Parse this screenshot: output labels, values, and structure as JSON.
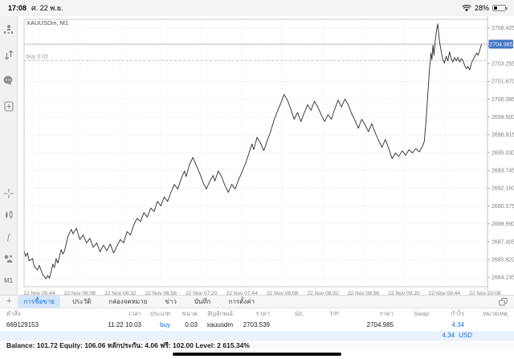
{
  "status_bar": {
    "time": "17:08",
    "date": "ศ. 22 พ.ย.",
    "battery_percent": "28%"
  },
  "sidebar": {
    "timeframe": "M1",
    "indicators_label": "f"
  },
  "tabs": {
    "add": "+",
    "items": [
      {
        "label": "การซื้อขาย",
        "selected": true
      },
      {
        "label": "ประวัติ",
        "selected": false
      },
      {
        "label": "กล่องจดหมาย",
        "selected": false
      },
      {
        "label": "ข่าว",
        "selected": false
      },
      {
        "label": "บันทึก",
        "selected": false
      },
      {
        "label": "การตั้งค่า",
        "selected": false
      }
    ]
  },
  "table": {
    "headers": [
      "คำสั่ง",
      "เวลา",
      "ประเภท",
      "ขนาด",
      "สัญลักษณ์",
      "ราคา",
      "S/L",
      "T/P",
      "ราคา",
      "Swap",
      "กำไร",
      "หมายเหตุ"
    ],
    "row": {
      "order": "669129153",
      "time": "11.22 10:03",
      "type": "buy",
      "size": "0.03",
      "symbol": "xauusdm",
      "price_open": "2703.539",
      "sl": "",
      "tp": "",
      "price_current": "2704.985",
      "swap": "",
      "profit": "4.34",
      "comment": ""
    },
    "summary_profit": "4.34",
    "summary_currency": "USD"
  },
  "balance_line": "Balance: 101.72 Equity: 106.06 หลักประกัน: 4.06 ฟรี: 102.00 Level: 2 615.34%",
  "chart_data": {
    "type": "line",
    "title": "XAUUSDm, M1",
    "symbol_label": "XAUUSDm, M1",
    "grid": true,
    "legend_position": "none",
    "ylim": [
      2683.4,
      2707.2
    ],
    "xlim_minutes": [
      0,
      274.5
    ],
    "y_ticks": [
      "2706.425",
      "2704.840",
      "2703.255",
      "2701.670",
      "2700.085",
      "2698.500",
      "2696.915",
      "2695.330",
      "2693.745",
      "2692.160",
      "2690.575",
      "2688.990",
      "2687.405",
      "2685.820",
      "2684.235"
    ],
    "x_ticks": [
      "22 Nov 05:44",
      "22 Nov 06:08",
      "22 Nov 06:32",
      "22 Nov 06:56",
      "22 Nov 07:20",
      "22 Nov 07:44",
      "22 Nov 08:08",
      "22 Nov 08:32",
      "22 Nov 08:56",
      "22 Nov 09:20",
      "22 Nov 09:44",
      "22 Nov 10:08"
    ],
    "x_tick_minutes": [
      9,
      33,
      57,
      81,
      105,
      129,
      153,
      177,
      201,
      225,
      249,
      273
    ],
    "hlines": [
      {
        "name": "position-buy-line",
        "label": "buy 0.03",
        "value": 2703.539,
        "style": "dashed"
      },
      {
        "name": "bid-price-line",
        "label": "",
        "value": 2704.985,
        "style": "solid",
        "box": "2704.985"
      }
    ],
    "series": [
      {
        "name": "XAUUSDm bid",
        "color": "#2b2b2b",
        "points": [
          [
            0,
            2686.6
          ],
          [
            1,
            2686.1
          ],
          [
            2,
            2686.4
          ],
          [
            3,
            2685.7
          ],
          [
            5,
            2685.9
          ],
          [
            6,
            2685.2
          ],
          [
            8,
            2684.9
          ],
          [
            9,
            2685.3
          ],
          [
            11,
            2684.5
          ],
          [
            13,
            2684.1
          ],
          [
            14,
            2684.4
          ],
          [
            15,
            2684.15
          ],
          [
            16,
            2684.7
          ],
          [
            17,
            2685.4
          ],
          [
            18,
            2685.1
          ],
          [
            19,
            2685.9
          ],
          [
            20,
            2685.5
          ],
          [
            22,
            2686.7
          ],
          [
            23,
            2686.3
          ],
          [
            24,
            2686.6
          ],
          [
            26,
            2687.9
          ],
          [
            28,
            2688.5
          ],
          [
            29,
            2688.1
          ],
          [
            31,
            2688.6
          ],
          [
            33,
            2687.6
          ],
          [
            35,
            2688.0
          ],
          [
            37,
            2687.3
          ],
          [
            39,
            2687.7
          ],
          [
            41,
            2686.9
          ],
          [
            43,
            2687.3
          ],
          [
            45,
            2686.5
          ],
          [
            47,
            2687.1
          ],
          [
            49,
            2686.6
          ],
          [
            51,
            2687.2
          ],
          [
            53,
            2686.4
          ],
          [
            55,
            2687.0
          ],
          [
            57,
            2687.6
          ],
          [
            59,
            2687.3
          ],
          [
            61,
            2688.3
          ],
          [
            63,
            2688.0
          ],
          [
            65,
            2688.9
          ],
          [
            67,
            2689.5
          ],
          [
            69,
            2689.2
          ],
          [
            71,
            2690.0
          ],
          [
            73,
            2689.6
          ],
          [
            75,
            2690.4
          ],
          [
            77,
            2690.1
          ],
          [
            79,
            2691.0
          ],
          [
            81,
            2690.6
          ],
          [
            83,
            2691.4
          ],
          [
            85,
            2691.0
          ],
          [
            87,
            2691.8
          ],
          [
            89,
            2692.5
          ],
          [
            91,
            2692.1
          ],
          [
            93,
            2693.0
          ],
          [
            95,
            2693.7
          ],
          [
            96,
            2693.2
          ],
          [
            98,
            2694.3
          ],
          [
            100,
            2694.9
          ],
          [
            102,
            2694.2
          ],
          [
            104,
            2693.5
          ],
          [
            106,
            2692.7
          ],
          [
            108,
            2692.1
          ],
          [
            110,
            2692.8
          ],
          [
            112,
            2693.3
          ],
          [
            113,
            2692.8
          ],
          [
            115,
            2693.7
          ],
          [
            117,
            2693.2
          ],
          [
            119,
            2692.4
          ],
          [
            121,
            2691.8
          ],
          [
            123,
            2692.5
          ],
          [
            125,
            2692.1
          ],
          [
            127,
            2692.9
          ],
          [
            129,
            2693.6
          ],
          [
            131,
            2694.3
          ],
          [
            133,
            2695.2
          ],
          [
            135,
            2696.1
          ],
          [
            136,
            2695.6
          ],
          [
            138,
            2696.7
          ],
          [
            140,
            2696.2
          ],
          [
            142,
            2695.5
          ],
          [
            144,
            2696.4
          ],
          [
            146,
            2697.2
          ],
          [
            148,
            2698.2
          ],
          [
            150,
            2699.0
          ],
          [
            152,
            2699.7
          ],
          [
            154,
            2700.5
          ],
          [
            156,
            2700.0
          ],
          [
            158,
            2699.2
          ],
          [
            160,
            2698.3
          ],
          [
            162,
            2698.9
          ],
          [
            164,
            2698.1
          ],
          [
            166,
            2698.9
          ],
          [
            168,
            2699.6
          ],
          [
            170,
            2699.1
          ],
          [
            172,
            2699.9
          ],
          [
            174,
            2699.4
          ],
          [
            176,
            2698.7
          ],
          [
            178,
            2698.1
          ],
          [
            180,
            2698.7
          ],
          [
            182,
            2698.3
          ],
          [
            184,
            2699.2
          ],
          [
            186,
            2700.0
          ],
          [
            188,
            2699.4
          ],
          [
            190,
            2700.1
          ],
          [
            192,
            2699.6
          ],
          [
            194,
            2698.8
          ],
          [
            196,
            2698.2
          ],
          [
            198,
            2697.5
          ],
          [
            200,
            2698.3
          ],
          [
            202,
            2697.8
          ],
          [
            204,
            2697.2
          ],
          [
            206,
            2697.9
          ],
          [
            208,
            2697.1
          ],
          [
            210,
            2696.4
          ],
          [
            212,
            2695.8
          ],
          [
            214,
            2696.5
          ],
          [
            216,
            2695.7
          ],
          [
            218,
            2694.8
          ],
          [
            220,
            2695.3
          ],
          [
            222,
            2695.0
          ],
          [
            224,
            2695.5
          ],
          [
            226,
            2695.1
          ],
          [
            228,
            2695.6
          ],
          [
            230,
            2695.3
          ],
          [
            232,
            2695.7
          ],
          [
            234,
            2695.4
          ],
          [
            236,
            2695.9
          ],
          [
            237,
            2696.3
          ],
          [
            238,
            2698.0
          ],
          [
            239,
            2700.2
          ],
          [
            240,
            2702.5
          ],
          [
            241,
            2704.2
          ],
          [
            241.6,
            2703.6
          ],
          [
            242.2,
            2704.9
          ],
          [
            242.8,
            2704.0
          ],
          [
            243.5,
            2705.2
          ],
          [
            244.2,
            2706.1
          ],
          [
            245,
            2706.8
          ],
          [
            246,
            2705.3
          ],
          [
            247,
            2704.4
          ],
          [
            248,
            2703.6
          ],
          [
            249,
            2703.3
          ],
          [
            250,
            2703.9
          ],
          [
            251,
            2703.5
          ],
          [
            252,
            2704.3
          ],
          [
            253,
            2703.7
          ],
          [
            254,
            2703.4
          ],
          [
            255,
            2703.8
          ],
          [
            256,
            2703.5
          ],
          [
            257,
            2703.8
          ],
          [
            258,
            2703.4
          ],
          [
            259,
            2703.7
          ],
          [
            260,
            2703.5
          ],
          [
            261,
            2703.1
          ],
          [
            262,
            2702.8
          ],
          [
            263,
            2703.0
          ],
          [
            264,
            2702.7
          ],
          [
            265,
            2703.3
          ],
          [
            266,
            2703.6
          ],
          [
            267,
            2703.9
          ],
          [
            268,
            2704.2
          ],
          [
            269,
            2704.0
          ],
          [
            270,
            2704.5
          ],
          [
            271,
            2704.985
          ]
        ]
      }
    ],
    "colors": {
      "price_box": "#3f74c2",
      "grid": "#dcdcdc",
      "axis_text": "#7f7f7f",
      "line": "#2b2b2b",
      "accent_blue": "#0f6fe0"
    }
  }
}
